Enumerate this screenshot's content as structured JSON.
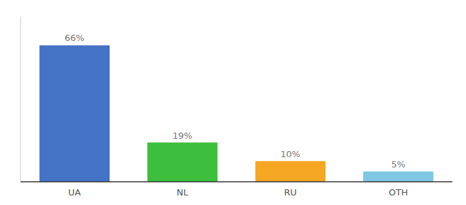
{
  "chart_data": {
    "type": "bar",
    "categories": [
      "UA",
      "NL",
      "RU",
      "OTH"
    ],
    "values": [
      66,
      19,
      10,
      5
    ],
    "value_labels": [
      "66%",
      "19%",
      "10%",
      "5%"
    ],
    "colors": [
      "#4472c4",
      "#3dbf3d",
      "#f5a623",
      "#7ec8e3"
    ],
    "ylim": [
      0,
      80
    ],
    "data_labels": true,
    "tick_labels": "x",
    "grid": false
  }
}
